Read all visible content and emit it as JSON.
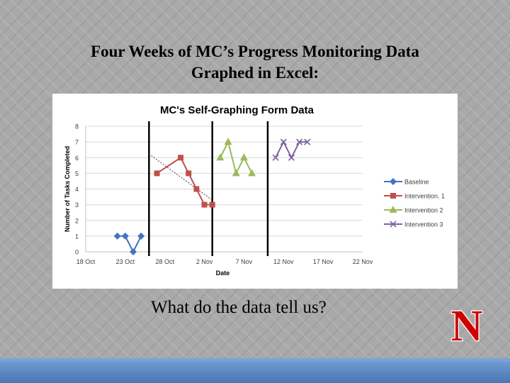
{
  "slide": {
    "title_line1": "Four Weeks of MC’s Progress Monitoring Data",
    "title_line2": "Graphed in Excel:",
    "caption": "What do the data tell us?",
    "logo_letter": "N",
    "colors": {
      "logo_red": "#d00000",
      "bottom_bar": "#5b86c3"
    }
  },
  "chart_data": {
    "type": "line",
    "title": "MC's Self-Graphing Form Data",
    "xlabel": "Date",
    "ylabel": "Number of Tasks Completed",
    "ylim": [
      0,
      8
    ],
    "yticks": [
      0,
      1,
      2,
      3,
      4,
      5,
      6,
      7,
      8
    ],
    "xticks": [
      "18 Oct",
      "23 Oct",
      "28 Oct",
      "2 Nov",
      "7 Nov",
      "12 Nov",
      "17 Nov",
      "22 Nov"
    ],
    "xlim": [
      "2013-10-18",
      "2013-11-22"
    ],
    "grid": true,
    "legend_position": "right",
    "phase_lines": [
      "2013-10-26",
      "2013-11-03",
      "2013-11-10"
    ],
    "series": [
      {
        "name": "Baseline",
        "color": "#4472c4",
        "marker": "diamond",
        "points": [
          [
            "2013-10-22",
            1
          ],
          [
            "2013-10-23",
            1
          ],
          [
            "2013-10-24",
            0
          ],
          [
            "2013-10-25",
            1
          ]
        ]
      },
      {
        "name": "Intervention. 1",
        "color": "#c0504d",
        "marker": "square",
        "points": [
          [
            "2013-10-27",
            5
          ],
          [
            "2013-10-30",
            6
          ],
          [
            "2013-10-31",
            5
          ],
          [
            "2013-11-01",
            4
          ],
          [
            "2013-11-02",
            3
          ],
          [
            "2013-11-03",
            3
          ]
        ]
      },
      {
        "name": "Intervention 2",
        "color": "#9bbb59",
        "marker": "triangle",
        "points": [
          [
            "2013-11-04",
            6
          ],
          [
            "2013-11-05",
            7
          ],
          [
            "2013-11-06",
            5
          ],
          [
            "2013-11-07",
            6
          ],
          [
            "2013-11-08",
            5
          ]
        ]
      },
      {
        "name": "Intervention 3",
        "color": "#8064a2",
        "marker": "x",
        "points": [
          [
            "2013-11-11",
            6
          ],
          [
            "2013-11-12",
            7
          ],
          [
            "2013-11-13",
            6
          ],
          [
            "2013-11-14",
            7
          ],
          [
            "2013-11-15",
            7
          ]
        ]
      }
    ],
    "trendline": {
      "series": "Intervention. 1",
      "style": "dotted",
      "color": "#404040"
    }
  }
}
